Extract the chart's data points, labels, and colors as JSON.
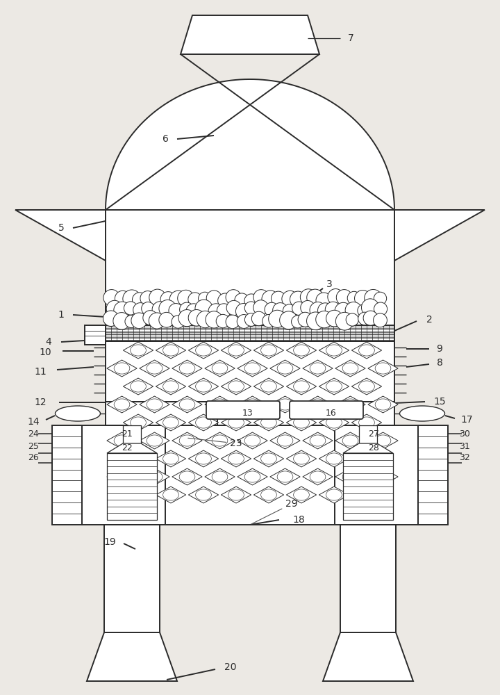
{
  "bg_color": "#ece9e4",
  "line_color": "#2a2a2a",
  "line_width": 1.4
}
